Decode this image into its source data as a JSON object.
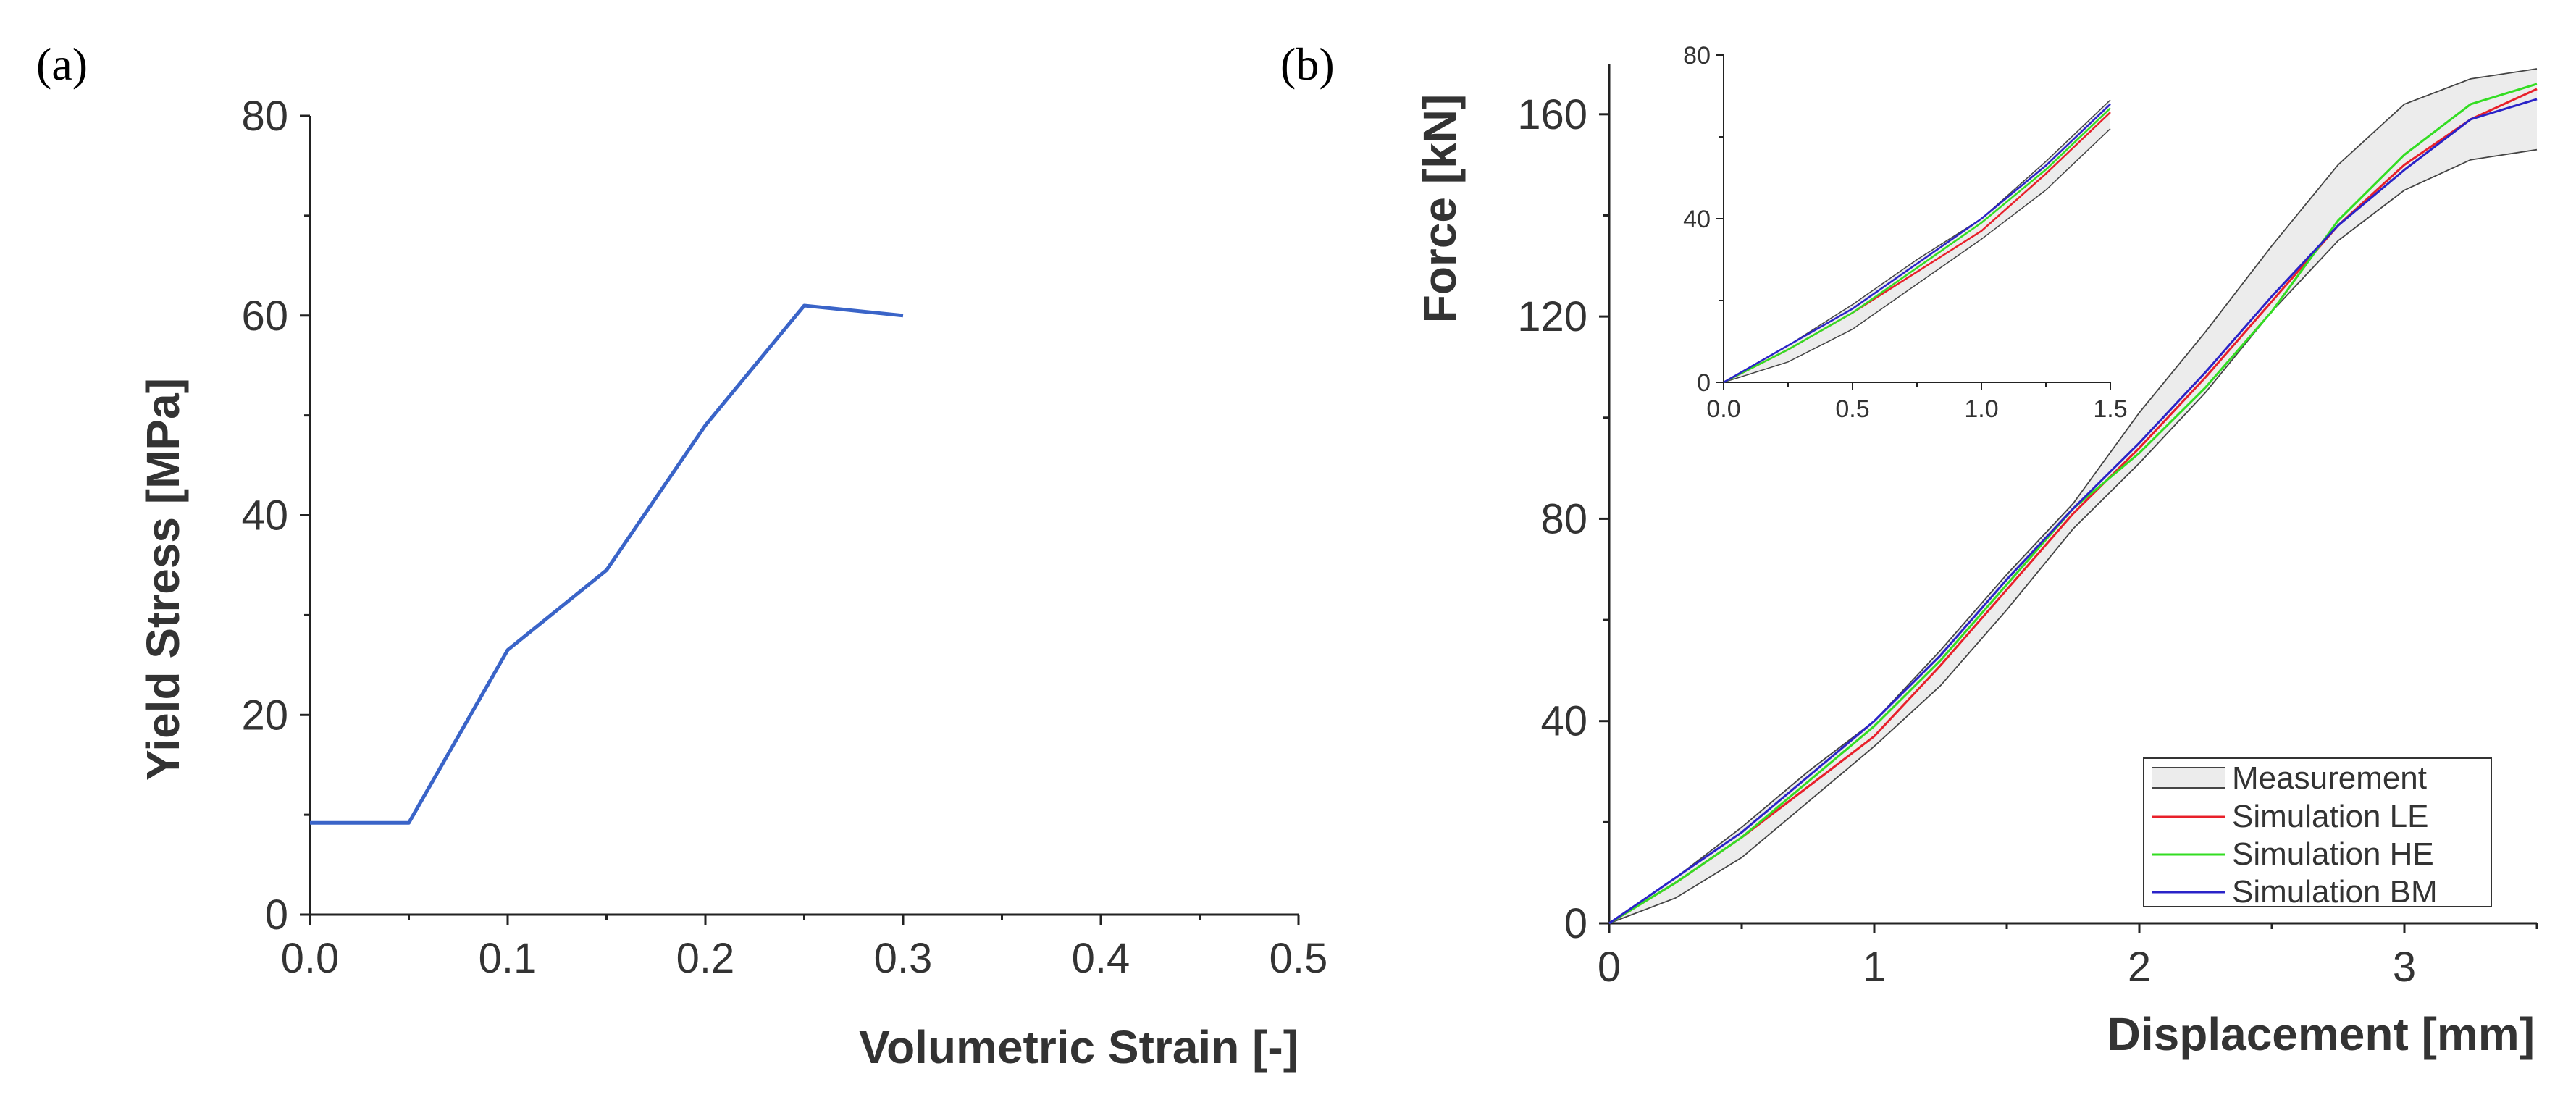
{
  "chart_data": [
    {
      "panel_label": "(a)",
      "type": "line",
      "xlabel": "Volumetric Strain [-]",
      "ylabel": "Yield Stress [MPa]",
      "xlim": [
        0,
        0.5
      ],
      "ylim": [
        0,
        80
      ],
      "xticks": [
        "0.0",
        "0.1",
        "0.2",
        "0.3",
        "0.4",
        "0.5"
      ],
      "yticks": [
        "0",
        "20",
        "40",
        "60",
        "80"
      ],
      "color": "#3a64c8",
      "x": [
        0.0,
        0.05,
        0.1,
        0.15,
        0.2,
        0.25,
        0.3
      ],
      "y": [
        9.2,
        9.2,
        26.5,
        34.5,
        49.0,
        61.0,
        60.0
      ]
    },
    {
      "panel_label": "(b)",
      "type": "line",
      "xlabel": "Displacement [mm]",
      "ylabel": "Force [kN]",
      "xlim": [
        0,
        3.5
      ],
      "ylim": [
        0,
        170
      ],
      "xticks": [
        "0",
        "1",
        "2",
        "3"
      ],
      "yticks": [
        "0",
        "40",
        "80",
        "120",
        "160"
      ],
      "legend_position": "bottom-right",
      "series": [
        {
          "name": "Measurement",
          "kind": "band",
          "fill": "#ececec",
          "edge": "#444444",
          "x": [
            0,
            0.25,
            0.5,
            0.75,
            1.0,
            1.25,
            1.5,
            1.75,
            2.0,
            2.25,
            2.5,
            2.75,
            3.0,
            3.25,
            3.5
          ],
          "upper": [
            0,
            9,
            19,
            30,
            40,
            54,
            69,
            83,
            101,
            117,
            134,
            150,
            162,
            167,
            169
          ],
          "lower": [
            0,
            5,
            13,
            24,
            35,
            47,
            62,
            78,
            91,
            105,
            121,
            135,
            145,
            151,
            153
          ]
        },
        {
          "name": "Simulation LE",
          "color": "#e8202a",
          "x": [
            0,
            0.25,
            0.5,
            0.75,
            1.0,
            1.25,
            1.5,
            1.75,
            2.0,
            2.25,
            2.5,
            2.75,
            3.0,
            3.25,
            3.5
          ],
          "y": [
            0,
            8,
            17,
            27,
            37,
            51,
            66,
            81,
            94,
            108,
            123,
            138,
            150,
            159,
            165
          ]
        },
        {
          "name": "Simulation HE",
          "color": "#33dd22",
          "x": [
            0,
            0.25,
            0.5,
            0.75,
            1.0,
            1.25,
            1.5,
            1.75,
            2.0,
            2.25,
            2.5,
            2.75,
            3.0,
            3.25,
            3.5
          ],
          "y": [
            0,
            8,
            17,
            28,
            39,
            52,
            67,
            82,
            93,
            106,
            121,
            139,
            152,
            162,
            166
          ]
        },
        {
          "name": "Simulation BM",
          "color": "#2a23c8",
          "x": [
            0,
            0.25,
            0.5,
            0.75,
            1.0,
            1.25,
            1.5,
            1.75,
            2.0,
            2.25,
            2.5,
            2.75,
            3.0,
            3.25,
            3.5
          ],
          "y": [
            0,
            9,
            18,
            29,
            40,
            53,
            68,
            82,
            95,
            109,
            124,
            138,
            149,
            159,
            163
          ]
        }
      ],
      "inset": {
        "xlim": [
          0,
          1.5
        ],
        "ylim": [
          0,
          80
        ],
        "xticks": [
          "0.0",
          "0.5",
          "1.0",
          "1.5"
        ],
        "yticks": [
          "0",
          "40",
          "80"
        ]
      }
    }
  ]
}
